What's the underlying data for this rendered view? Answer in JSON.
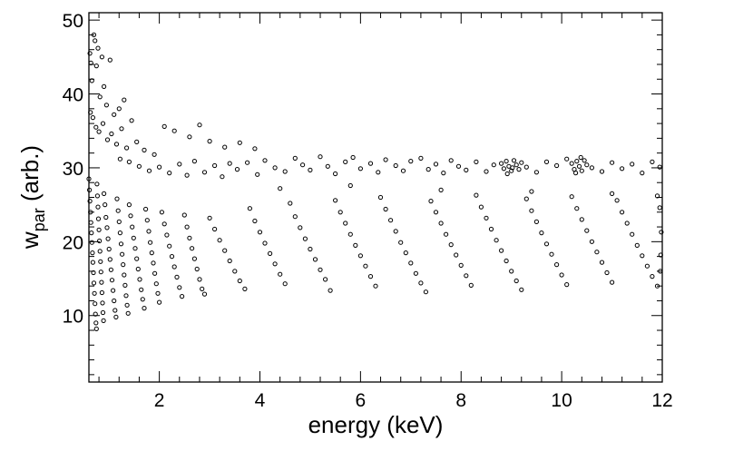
{
  "chart_data": {
    "type": "scatter",
    "title": "",
    "xlabel": "energy (keV)",
    "ylabel_main": "w",
    "ylabel_sub": "par",
    "ylabel_tail": " (arb.)",
    "xlim": [
      0.6,
      12
    ],
    "ylim": [
      1,
      51
    ],
    "x_ticks": [
      {
        "value": 2,
        "label": "2"
      },
      {
        "value": 4,
        "label": "4"
      },
      {
        "value": 6,
        "label": "6"
      },
      {
        "value": 8,
        "label": "8"
      },
      {
        "value": 10,
        "label": "10"
      },
      {
        "value": 12,
        "label": "12"
      }
    ],
    "y_ticks": [
      {
        "value": 10,
        "label": "10"
      },
      {
        "value": 20,
        "label": "20"
      },
      {
        "value": 30,
        "label": "30"
      },
      {
        "value": 40,
        "label": "40"
      },
      {
        "value": 50,
        "label": "50"
      }
    ],
    "grid": false,
    "legend": "none",
    "marker": "open-circle",
    "marker_color": "#000000",
    "series": [
      {
        "points": [
          [
            0.62,
            45.5
          ],
          [
            0.64,
            44.2
          ],
          [
            0.66,
            41.8
          ],
          [
            0.7,
            48.0
          ],
          [
            0.72,
            47.2
          ],
          [
            0.75,
            43.8
          ],
          [
            0.78,
            46.2
          ],
          [
            0.82,
            39.6
          ],
          [
            0.86,
            45.0
          ],
          [
            0.9,
            41.0
          ],
          [
            0.95,
            38.5
          ],
          [
            1.02,
            44.6
          ],
          [
            1.1,
            37.2
          ],
          [
            1.2,
            38.0
          ],
          [
            1.3,
            39.2
          ],
          [
            1.45,
            36.4
          ],
          [
            0.63,
            37.5
          ],
          [
            0.68,
            36.8
          ],
          [
            0.74,
            35.5
          ],
          [
            0.8,
            34.9
          ],
          [
            0.88,
            36.0
          ],
          [
            0.97,
            33.8
          ],
          [
            1.05,
            34.6
          ],
          [
            1.15,
            33.2
          ],
          [
            1.25,
            35.3
          ],
          [
            1.35,
            32.7
          ],
          [
            1.55,
            33.5
          ],
          [
            1.7,
            32.4
          ],
          [
            1.9,
            31.8
          ],
          [
            2.1,
            35.6
          ],
          [
            2.3,
            35.0
          ],
          [
            2.6,
            34.2
          ],
          [
            2.8,
            35.8
          ],
          [
            3.0,
            33.6
          ],
          [
            3.3,
            32.8
          ],
          [
            3.6,
            33.4
          ],
          [
            3.9,
            32.6
          ],
          [
            1.22,
            31.2
          ],
          [
            1.4,
            30.8
          ],
          [
            1.6,
            30.2
          ],
          [
            1.8,
            29.6
          ],
          [
            2.0,
            30.1
          ],
          [
            2.2,
            29.3
          ],
          [
            2.4,
            30.5
          ],
          [
            2.55,
            29.0
          ],
          [
            2.7,
            30.9
          ],
          [
            2.9,
            29.4
          ],
          [
            3.1,
            30.3
          ],
          [
            3.25,
            28.8
          ],
          [
            3.4,
            30.6
          ],
          [
            3.55,
            29.8
          ],
          [
            3.75,
            30.7
          ],
          [
            3.95,
            29.1
          ],
          [
            4.1,
            31.0
          ],
          [
            4.3,
            30.0
          ],
          [
            4.5,
            29.5
          ],
          [
            4.7,
            31.3
          ],
          [
            4.85,
            30.4
          ],
          [
            5.0,
            29.7
          ],
          [
            5.2,
            31.5
          ],
          [
            5.35,
            30.2
          ],
          [
            5.5,
            29.2
          ],
          [
            5.7,
            30.8
          ],
          [
            5.85,
            31.4
          ],
          [
            6.0,
            29.9
          ],
          [
            6.2,
            30.6
          ],
          [
            6.35,
            29.4
          ],
          [
            6.5,
            31.1
          ],
          [
            6.7,
            30.3
          ],
          [
            6.85,
            29.6
          ],
          [
            7.0,
            30.9
          ],
          [
            7.2,
            31.3
          ],
          [
            7.35,
            29.8
          ],
          [
            7.5,
            30.5
          ],
          [
            7.65,
            29.3
          ],
          [
            7.8,
            31.0
          ],
          [
            7.95,
            30.2
          ],
          [
            8.1,
            29.7
          ],
          [
            8.3,
            30.8
          ],
          [
            8.5,
            29.5
          ],
          [
            8.65,
            30.4
          ],
          [
            8.8,
            30.6
          ],
          [
            8.85,
            29.9
          ],
          [
            8.9,
            30.9
          ],
          [
            8.95,
            30.2
          ],
          [
            9.0,
            29.6
          ],
          [
            9.05,
            31.0
          ],
          [
            9.1,
            30.4
          ],
          [
            9.15,
            29.8
          ],
          [
            9.2,
            30.7
          ],
          [
            8.92,
            29.2
          ],
          [
            9.02,
            30.0
          ],
          [
            9.3,
            30.1
          ],
          [
            9.5,
            29.4
          ],
          [
            9.7,
            30.8
          ],
          [
            9.9,
            30.3
          ],
          [
            10.1,
            31.2
          ],
          [
            10.2,
            30.6
          ],
          [
            10.25,
            29.8
          ],
          [
            10.3,
            30.9
          ],
          [
            10.35,
            30.2
          ],
          [
            10.4,
            29.6
          ],
          [
            10.45,
            31.0
          ],
          [
            10.5,
            30.4
          ],
          [
            10.28,
            29.3
          ],
          [
            10.38,
            31.4
          ],
          [
            10.6,
            30.0
          ],
          [
            10.8,
            29.5
          ],
          [
            11.0,
            30.7
          ],
          [
            11.2,
            29.9
          ],
          [
            11.4,
            30.5
          ],
          [
            11.6,
            29.3
          ],
          [
            11.8,
            30.8
          ],
          [
            11.95,
            30.1
          ],
          [
            4.4,
            27.2
          ],
          [
            5.8,
            27.6
          ],
          [
            7.6,
            27.0
          ],
          [
            9.4,
            26.8
          ],
          [
            11.0,
            26.5
          ],
          [
            11.9,
            26.2
          ],
          [
            0.6,
            28.5
          ],
          [
            0.61,
            27.0
          ],
          [
            0.62,
            25.5
          ],
          [
            0.63,
            24.0
          ],
          [
            0.64,
            22.6
          ],
          [
            0.65,
            21.2
          ],
          [
            0.66,
            19.9
          ],
          [
            0.67,
            18.5
          ],
          [
            0.68,
            17.2
          ],
          [
            0.69,
            15.8
          ],
          [
            0.7,
            14.4
          ],
          [
            0.71,
            13.0
          ],
          [
            0.72,
            11.6
          ],
          [
            0.73,
            10.2
          ],
          [
            0.74,
            9.0
          ],
          [
            0.75,
            8.2
          ],
          [
            0.76,
            27.8
          ],
          [
            0.77,
            26.2
          ],
          [
            0.78,
            24.7
          ],
          [
            0.79,
            23.1
          ],
          [
            0.8,
            21.6
          ],
          [
            0.81,
            20.1
          ],
          [
            0.82,
            18.7
          ],
          [
            0.83,
            17.3
          ],
          [
            0.84,
            15.9
          ],
          [
            0.85,
            14.5
          ],
          [
            0.86,
            13.1
          ],
          [
            0.87,
            11.7
          ],
          [
            0.88,
            10.4
          ],
          [
            0.89,
            9.3
          ],
          [
            0.9,
            26.5
          ],
          [
            0.92,
            25.0
          ],
          [
            0.94,
            23.3
          ],
          [
            0.96,
            21.9
          ],
          [
            0.98,
            20.4
          ],
          [
            1.0,
            19.0
          ],
          [
            1.02,
            17.6
          ],
          [
            1.04,
            16.2
          ],
          [
            1.06,
            14.8
          ],
          [
            1.08,
            13.4
          ],
          [
            1.1,
            12.0
          ],
          [
            1.12,
            10.7
          ],
          [
            1.14,
            9.8
          ],
          [
            1.16,
            25.8
          ],
          [
            1.18,
            24.2
          ],
          [
            1.2,
            22.7
          ],
          [
            1.22,
            21.2
          ],
          [
            1.24,
            19.7
          ],
          [
            1.26,
            18.3
          ],
          [
            1.28,
            16.9
          ],
          [
            1.3,
            15.5
          ],
          [
            1.32,
            14.1
          ],
          [
            1.34,
            12.7
          ],
          [
            1.36,
            11.4
          ],
          [
            1.38,
            10.3
          ],
          [
            1.4,
            25.0
          ],
          [
            1.43,
            23.5
          ],
          [
            1.46,
            22.0
          ],
          [
            1.49,
            20.5
          ],
          [
            1.52,
            19.1
          ],
          [
            1.55,
            17.7
          ],
          [
            1.58,
            16.3
          ],
          [
            1.61,
            14.9
          ],
          [
            1.64,
            13.5
          ],
          [
            1.67,
            12.2
          ],
          [
            1.7,
            11.0
          ],
          [
            1.73,
            24.4
          ],
          [
            1.76,
            22.9
          ],
          [
            1.79,
            21.4
          ],
          [
            1.82,
            19.9
          ],
          [
            1.85,
            18.5
          ],
          [
            1.88,
            17.1
          ],
          [
            1.91,
            15.7
          ],
          [
            1.94,
            14.3
          ],
          [
            1.97,
            13.0
          ],
          [
            2.0,
            11.8
          ],
          [
            2.05,
            24.0
          ],
          [
            2.1,
            22.4
          ],
          [
            2.15,
            20.9
          ],
          [
            2.2,
            19.4
          ],
          [
            2.25,
            18.0
          ],
          [
            2.3,
            16.6
          ],
          [
            2.35,
            15.2
          ],
          [
            2.4,
            13.8
          ],
          [
            2.45,
            12.6
          ],
          [
            2.5,
            23.6
          ],
          [
            2.55,
            22.0
          ],
          [
            2.6,
            20.5
          ],
          [
            2.65,
            19.1
          ],
          [
            2.7,
            17.7
          ],
          [
            2.75,
            16.3
          ],
          [
            2.8,
            14.9
          ],
          [
            2.85,
            13.6
          ],
          [
            2.9,
            12.9
          ],
          [
            3.0,
            23.2
          ],
          [
            3.1,
            21.7
          ],
          [
            3.2,
            20.2
          ],
          [
            3.3,
            18.8
          ],
          [
            3.4,
            17.4
          ],
          [
            3.5,
            16.0
          ],
          [
            3.6,
            14.7
          ],
          [
            3.7,
            13.6
          ],
          [
            3.8,
            24.5
          ],
          [
            3.9,
            22.8
          ],
          [
            4.0,
            21.3
          ],
          [
            4.1,
            19.8
          ],
          [
            4.2,
            18.4
          ],
          [
            4.3,
            17.0
          ],
          [
            4.4,
            15.6
          ],
          [
            4.5,
            14.3
          ],
          [
            4.6,
            25.2
          ],
          [
            4.7,
            23.4
          ],
          [
            4.8,
            21.9
          ],
          [
            4.9,
            20.4
          ],
          [
            5.0,
            19.0
          ],
          [
            5.1,
            17.6
          ],
          [
            5.2,
            16.2
          ],
          [
            5.3,
            14.9
          ],
          [
            5.4,
            13.4
          ],
          [
            5.5,
            25.6
          ],
          [
            5.6,
            24.0
          ],
          [
            5.7,
            22.5
          ],
          [
            5.8,
            21.0
          ],
          [
            5.9,
            19.5
          ],
          [
            6.0,
            18.1
          ],
          [
            6.1,
            16.7
          ],
          [
            6.2,
            15.3
          ],
          [
            6.3,
            14.0
          ],
          [
            6.4,
            26.0
          ],
          [
            6.5,
            24.4
          ],
          [
            6.6,
            22.9
          ],
          [
            6.7,
            21.4
          ],
          [
            6.8,
            19.9
          ],
          [
            6.9,
            18.5
          ],
          [
            7.0,
            17.1
          ],
          [
            7.1,
            15.7
          ],
          [
            7.2,
            14.4
          ],
          [
            7.3,
            13.2
          ],
          [
            7.4,
            25.5
          ],
          [
            7.5,
            24.0
          ],
          [
            7.6,
            22.5
          ],
          [
            7.7,
            21.0
          ],
          [
            7.8,
            19.6
          ],
          [
            7.9,
            18.2
          ],
          [
            8.0,
            16.8
          ],
          [
            8.1,
            15.4
          ],
          [
            8.2,
            14.1
          ],
          [
            8.3,
            26.3
          ],
          [
            8.4,
            24.7
          ],
          [
            8.5,
            23.2
          ],
          [
            8.6,
            21.7
          ],
          [
            8.7,
            20.2
          ],
          [
            8.8,
            18.8
          ],
          [
            8.9,
            17.4
          ],
          [
            9.0,
            16.0
          ],
          [
            9.1,
            14.7
          ],
          [
            9.2,
            13.5
          ],
          [
            9.3,
            25.8
          ],
          [
            9.4,
            24.2
          ],
          [
            9.5,
            22.7
          ],
          [
            9.6,
            21.2
          ],
          [
            9.7,
            19.7
          ],
          [
            9.8,
            18.3
          ],
          [
            9.9,
            16.9
          ],
          [
            10.0,
            15.5
          ],
          [
            10.1,
            14.2
          ],
          [
            10.2,
            26.1
          ],
          [
            10.3,
            24.5
          ],
          [
            10.4,
            23.0
          ],
          [
            10.5,
            21.5
          ],
          [
            10.6,
            20.0
          ],
          [
            10.7,
            18.6
          ],
          [
            10.8,
            17.2
          ],
          [
            10.9,
            15.8
          ],
          [
            11.0,
            14.5
          ],
          [
            11.1,
            25.6
          ],
          [
            11.2,
            24.0
          ],
          [
            11.3,
            22.5
          ],
          [
            11.4,
            21.0
          ],
          [
            11.5,
            19.5
          ],
          [
            11.6,
            18.1
          ],
          [
            11.7,
            16.7
          ],
          [
            11.8,
            15.3
          ],
          [
            11.9,
            14.0
          ],
          [
            11.95,
            24.6
          ],
          [
            11.98,
            21.3
          ],
          [
            11.97,
            18.2
          ],
          [
            11.96,
            16.0
          ]
        ]
      }
    ]
  }
}
